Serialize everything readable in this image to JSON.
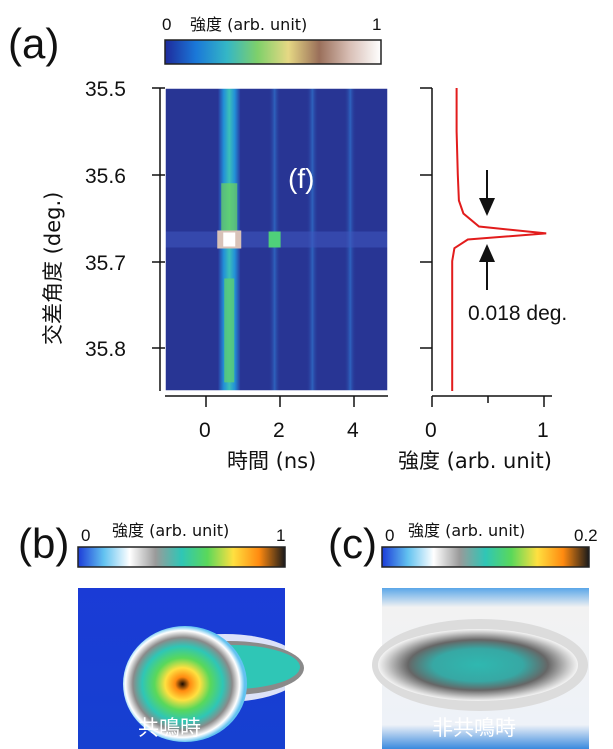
{
  "panel_a": {
    "label": "(a)",
    "colorbar": {
      "title": "強度 (arb. unit)",
      "min_label": "0",
      "max_label": "1",
      "colors": [
        "#1e2a9c",
        "#1a78d8",
        "#34b6c6",
        "#7fd06a",
        "#e6d884",
        "#9a6f5a",
        "#d9c0b7",
        "#ffffff"
      ]
    },
    "heatmap": {
      "inner_label": "(f)",
      "x_label": "時間 (ns)",
      "y_label": "交差角度 (deg.)",
      "x_ticks": [
        "0",
        "2",
        "4"
      ],
      "y_ticks": [
        "35.5",
        "35.6",
        "35.7",
        "35.8"
      ],
      "background_color": "#283594"
    },
    "profile": {
      "x_label": "強度 (arb. unit)",
      "x_ticks": [
        "0",
        "1"
      ],
      "annotation": "0.018 deg.",
      "line_color": "#e21c1c"
    }
  },
  "panel_b": {
    "label": "(b)",
    "colorbar": {
      "title": "強度 (arb. unit)",
      "min_label": "0",
      "max_label": "1",
      "colors": [
        "#1c3cd8",
        "#62c2f0",
        "#ffffff",
        "#9a9a9a",
        "#2fc6b6",
        "#5ad85a",
        "#ffe040",
        "#ff8a10",
        "#1a1a1a"
      ]
    },
    "caption": "共鳴時"
  },
  "panel_c": {
    "label": "(c)",
    "colorbar": {
      "title": "強度 (arb. unit)",
      "min_label": "0",
      "max_label": "0.2",
      "colors": [
        "#1c3cd8",
        "#62c2f0",
        "#ffffff",
        "#9a9a9a",
        "#2fc6b6",
        "#5ad85a",
        "#ffe040",
        "#ff8a10",
        "#1a1a1a"
      ]
    },
    "caption": "非共鳴時"
  },
  "chart_data": [
    {
      "type": "heatmap",
      "title": "",
      "xlabel": "時間 (ns)",
      "ylabel": "交差角度 (deg.)",
      "xlim": [
        -1.0,
        4.9
      ],
      "ylim": [
        35.85,
        35.5
      ],
      "colorbar_range": [
        0,
        1
      ],
      "bright_stripes_time_ns": [
        0.7,
        1.9,
        2.9,
        3.9
      ],
      "peak": {
        "x": 0.7,
        "y": 35.675,
        "value": 1.0
      }
    },
    {
      "type": "line",
      "title": "",
      "xlabel": "強度 (arb. unit)",
      "ylabel": "",
      "xlim": [
        0,
        1.1
      ],
      "ylim": [
        35.85,
        35.5
      ],
      "x": [
        0.22,
        0.22,
        0.23,
        0.24,
        0.28,
        0.42,
        1.02,
        0.32,
        0.2,
        0.18,
        0.18,
        0.18,
        0.18
      ],
      "y": [
        35.5,
        35.55,
        35.6,
        35.63,
        35.645,
        35.66,
        35.668,
        35.675,
        35.685,
        35.7,
        35.75,
        35.8,
        35.85
      ],
      "annotation": "0.018 deg."
    }
  ]
}
